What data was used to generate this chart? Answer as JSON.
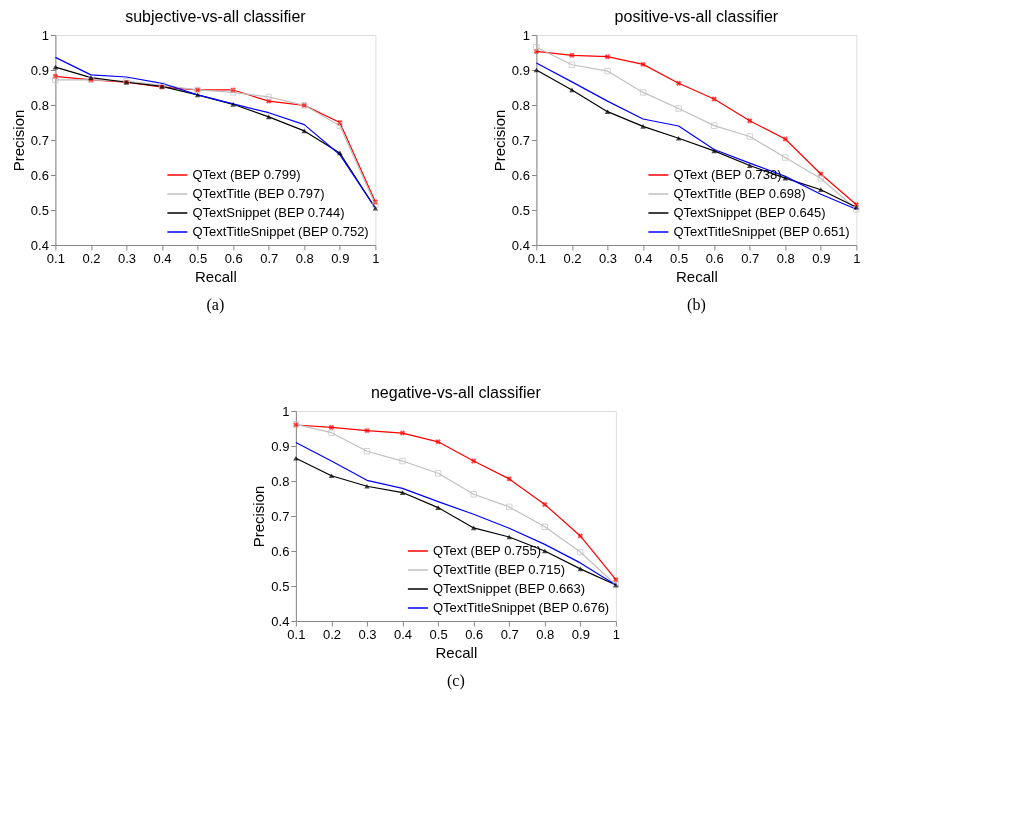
{
  "chart_data": [
    {
      "type": "line",
      "title": "subjective-vs-all classifier",
      "xlabel": "Recall",
      "ylabel": "Precision",
      "annotations": [
        "(a)"
      ],
      "x": [
        0.1,
        0.2,
        0.3,
        0.4,
        0.5,
        0.6,
        0.7,
        0.8,
        0.9,
        1
      ],
      "xlim": [
        0.1,
        1
      ],
      "xticks": [
        0.1,
        0.2,
        0.3,
        0.4,
        0.5,
        0.6,
        0.7,
        0.8,
        0.9,
        1
      ],
      "ylim": [
        0.4,
        1
      ],
      "yticks": [
        0.4,
        0.5,
        0.6,
        0.7,
        0.8,
        0.9,
        1
      ],
      "grid": false,
      "legend": "bottom right",
      "line_style": "solid",
      "series": [
        {
          "name": "QText (BEP 0.799)",
          "color": "#ff0000",
          "marker": "cross",
          "values": [
            0.882,
            0.872,
            0.865,
            0.851,
            0.843,
            0.843,
            0.811,
            0.799,
            0.75,
            0.523
          ]
        },
        {
          "name": "QTextTitle (BEP 0.797)",
          "color": "#c0c0c0",
          "marker": "square",
          "values": [
            0.872,
            0.872,
            0.868,
            0.856,
            0.843,
            0.836,
            0.823,
            0.799,
            0.741,
            0.515
          ]
        },
        {
          "name": "QTextSnippet (BEP 0.744)",
          "color": "#000000",
          "marker": "triangle",
          "values": [
            0.908,
            0.878,
            0.865,
            0.853,
            0.829,
            0.802,
            0.766,
            0.726,
            0.663,
            0.505
          ]
        },
        {
          "name": "QTextTitleSnippet (BEP 0.752)",
          "color": "#0000ff",
          "marker": "none",
          "values": [
            0.936,
            0.886,
            0.88,
            0.862,
            0.829,
            0.803,
            0.778,
            0.744,
            0.658,
            0.505
          ]
        }
      ]
    },
    {
      "type": "line",
      "title": "positive-vs-all classifier",
      "xlabel": "Recall",
      "ylabel": "Precision",
      "annotations": [
        "(b)"
      ],
      "x": [
        0.1,
        0.2,
        0.3,
        0.4,
        0.5,
        0.6,
        0.7,
        0.8,
        0.9,
        1
      ],
      "xlim": [
        0.1,
        1
      ],
      "xticks": [
        0.1,
        0.2,
        0.3,
        0.4,
        0.5,
        0.6,
        0.7,
        0.8,
        0.9,
        1
      ],
      "ylim": [
        0.4,
        1
      ],
      "yticks": [
        0.4,
        0.5,
        0.6,
        0.7,
        0.8,
        0.9,
        1
      ],
      "grid": false,
      "legend": "bottom right",
      "line_style": "solid",
      "series": [
        {
          "name": "QText (BEP 0.738)",
          "color": "#ff0000",
          "marker": "cross",
          "values": [
            0.953,
            0.942,
            0.938,
            0.916,
            0.862,
            0.817,
            0.755,
            0.703,
            0.603,
            0.515
          ]
        },
        {
          "name": "QTextTitle (BEP 0.698)",
          "color": "#c0c0c0",
          "marker": "square",
          "values": [
            0.965,
            0.915,
            0.897,
            0.836,
            0.79,
            0.741,
            0.71,
            0.65,
            0.59,
            0.502
          ]
        },
        {
          "name": "QTextSnippet (BEP 0.645)",
          "color": "#000000",
          "marker": "triangle",
          "values": [
            0.9,
            0.843,
            0.781,
            0.739,
            0.705,
            0.669,
            0.627,
            0.591,
            0.558,
            0.508
          ]
        },
        {
          "name": "QTextTitleSnippet (BEP 0.651)",
          "color": "#0000ff",
          "marker": "none",
          "values": [
            0.92,
            0.866,
            0.811,
            0.76,
            0.74,
            0.673,
            0.634,
            0.596,
            0.545,
            0.502
          ]
        }
      ]
    },
    {
      "type": "line",
      "title": "negative-vs-all classifier",
      "xlabel": "Recall",
      "ylabel": "Precision",
      "annotations": [
        "(c)"
      ],
      "x": [
        0.1,
        0.2,
        0.3,
        0.4,
        0.5,
        0.6,
        0.7,
        0.8,
        0.9,
        1
      ],
      "xlim": [
        0.1,
        1
      ],
      "xticks": [
        0.1,
        0.2,
        0.3,
        0.4,
        0.5,
        0.6,
        0.7,
        0.8,
        0.9,
        1
      ],
      "ylim": [
        0.4,
        1
      ],
      "yticks": [
        0.4,
        0.5,
        0.6,
        0.7,
        0.8,
        0.9,
        1
      ],
      "grid": false,
      "legend": "bottom right",
      "line_style": "solid",
      "series": [
        {
          "name": "QText (BEP 0.755)",
          "color": "#ff0000",
          "marker": "cross",
          "values": [
            0.96,
            0.953,
            0.944,
            0.937,
            0.912,
            0.857,
            0.806,
            0.733,
            0.643,
            0.518
          ]
        },
        {
          "name": "QTextTitle (BEP 0.715)",
          "color": "#c0c0c0",
          "marker": "square",
          "values": [
            0.962,
            0.938,
            0.885,
            0.857,
            0.822,
            0.762,
            0.726,
            0.669,
            0.597,
            0.503
          ]
        },
        {
          "name": "QTextSnippet (BEP 0.663)",
          "color": "#000000",
          "marker": "triangle",
          "values": [
            0.865,
            0.815,
            0.785,
            0.767,
            0.724,
            0.666,
            0.64,
            0.6,
            0.549,
            0.503
          ]
        },
        {
          "name": "QTextTitleSnippet (BEP 0.676)",
          "color": "#0000ff",
          "marker": "none",
          "values": [
            0.91,
            0.857,
            0.802,
            0.779,
            0.741,
            0.705,
            0.665,
            0.619,
            0.566,
            0.503
          ]
        }
      ]
    }
  ]
}
